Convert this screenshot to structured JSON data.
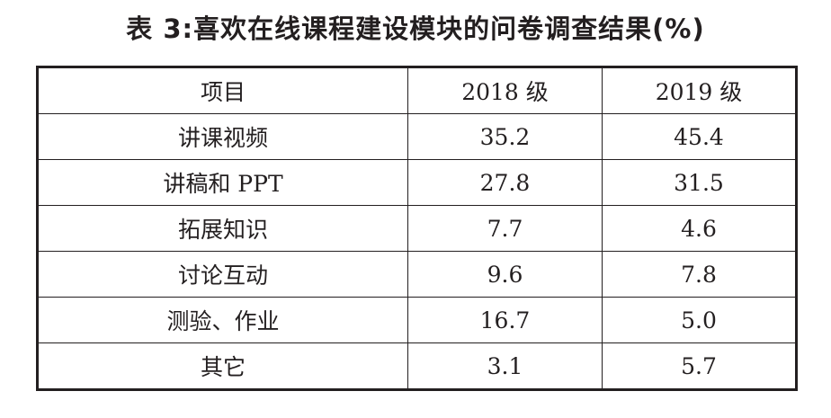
{
  "caption": "表 3:喜欢在线课程建设模块的问卷调查结果(%)",
  "table": {
    "headers": [
      "项目",
      "2018 级",
      "2019 级"
    ],
    "rows": [
      {
        "item": "讲课视频",
        "y2018": "35.2",
        "y2019": "45.4"
      },
      {
        "item": "讲稿和 PPT",
        "y2018": "27.8",
        "y2019": "31.5"
      },
      {
        "item": "拓展知识",
        "y2018": "7.7",
        "y2019": "4.6"
      },
      {
        "item": "讨论互动",
        "y2018": "9.6",
        "y2019": "7.8"
      },
      {
        "item": "测验、作业",
        "y2018": "16.7",
        "y2019": "5.0"
      },
      {
        "item": "其它",
        "y2018": "3.1",
        "y2019": "5.7"
      }
    ]
  }
}
